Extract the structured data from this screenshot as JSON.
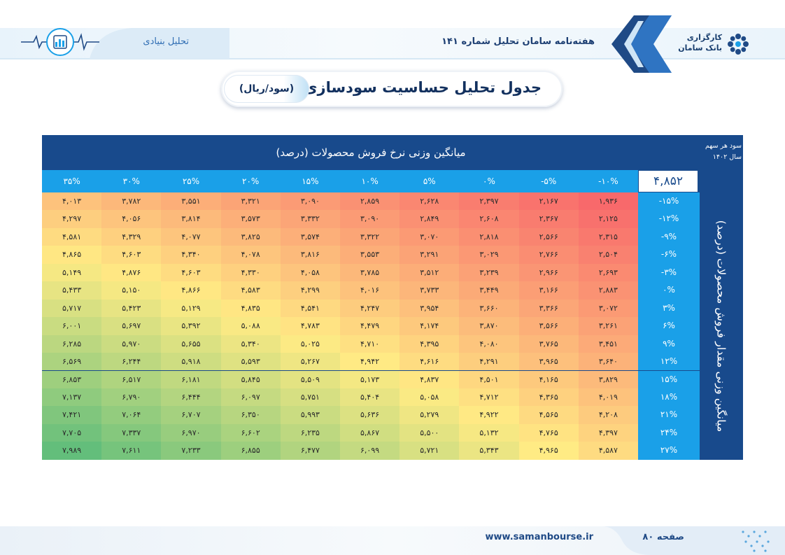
{
  "header": {
    "brand_line1": "کارگزاری",
    "brand_line2": "بانک سامان",
    "publication_title": "هفته‌نامه سامان تحلیل شماره ۱۴۱",
    "section": "تحلیل بنیادی"
  },
  "title": {
    "main": "جدول تحلیل حساسیت سودسازی",
    "unit": "(سود/ریال)"
  },
  "table": {
    "column_axis_title": "میانگین وزنی نرخ فروش محصولات (درصد)",
    "row_axis_title": "میانگین وزنی مقدار فروش محصولات (درصد)",
    "eps_label_line1": "سود هر سهم",
    "eps_label_line2": "سال ۱۴۰۲",
    "eps_value": "۴,۸۵۲",
    "column_headers": [
      "-۱۰%",
      "-۵%",
      "۰%",
      "۵%",
      "۱۰%",
      "۱۵%",
      "۲۰%",
      "۲۵%",
      "۳۰%",
      "۳۵%"
    ],
    "row_headers": [
      "-۱۵%",
      "-۱۲%",
      "-۹%",
      "-۶%",
      "-۳%",
      "۰%",
      "۳%",
      "۶%",
      "۹%",
      "۱۲%",
      "۱۵%",
      "۱۸%",
      "۲۱%",
      "۲۴%",
      "۲۷%"
    ],
    "rows": [
      [
        "۱,۹۳۶",
        "۲,۱۶۷",
        "۲,۳۹۷",
        "۲,۶۲۸",
        "۲,۸۵۹",
        "۳,۰۹۰",
        "۳,۳۲۱",
        "۳,۵۵۱",
        "۳,۷۸۲",
        "۴,۰۱۳"
      ],
      [
        "۲,۱۲۵",
        "۲,۳۶۷",
        "۲,۶۰۸",
        "۲,۸۴۹",
        "۳,۰۹۰",
        "۳,۳۳۲",
        "۳,۵۷۳",
        "۳,۸۱۴",
        "۴,۰۵۶",
        "۴,۲۹۷"
      ],
      [
        "۲,۳۱۵",
        "۲,۵۶۶",
        "۲,۸۱۸",
        "۳,۰۷۰",
        "۳,۳۲۲",
        "۳,۵۷۴",
        "۳,۸۲۵",
        "۴,۰۷۷",
        "۴,۳۲۹",
        "۴,۵۸۱"
      ],
      [
        "۲,۵۰۴",
        "۲,۷۶۶",
        "۳,۰۲۹",
        "۳,۲۹۱",
        "۳,۵۵۳",
        "۳,۸۱۶",
        "۴,۰۷۸",
        "۴,۳۴۰",
        "۴,۶۰۳",
        "۴,۸۶۵"
      ],
      [
        "۲,۶۹۳",
        "۲,۹۶۶",
        "۳,۲۳۹",
        "۳,۵۱۲",
        "۳,۷۸۵",
        "۴,۰۵۸",
        "۴,۳۳۰",
        "۴,۶۰۳",
        "۴,۸۷۶",
        "۵,۱۴۹"
      ],
      [
        "۲,۸۸۳",
        "۳,۱۶۶",
        "۳,۴۴۹",
        "۳,۷۳۳",
        "۴,۰۱۶",
        "۴,۲۹۹",
        "۴,۵۸۳",
        "۴,۸۶۶",
        "۵,۱۵۰",
        "۵,۴۳۳"
      ],
      [
        "۳,۰۷۲",
        "۳,۳۶۶",
        "۳,۶۶۰",
        "۳,۹۵۴",
        "۴,۲۴۷",
        "۴,۵۴۱",
        "۴,۸۳۵",
        "۵,۱۲۹",
        "۵,۴۲۳",
        "۵,۷۱۷"
      ],
      [
        "۳,۲۶۱",
        "۳,۵۶۶",
        "۳,۸۷۰",
        "۴,۱۷۴",
        "۴,۴۷۹",
        "۴,۷۸۳",
        "۵,۰۸۸",
        "۵,۳۹۲",
        "۵,۶۹۷",
        "۶,۰۰۱"
      ],
      [
        "۳,۴۵۱",
        "۳,۷۶۵",
        "۴,۰۸۰",
        "۴,۳۹۵",
        "۴,۷۱۰",
        "۵,۰۲۵",
        "۵,۳۴۰",
        "۵,۶۵۵",
        "۵,۹۷۰",
        "۶,۲۸۵"
      ],
      [
        "۳,۶۴۰",
        "۳,۹۶۵",
        "۴,۲۹۱",
        "۴,۶۱۶",
        "۴,۹۴۲",
        "۵,۲۶۷",
        "۵,۵۹۳",
        "۵,۹۱۸",
        "۶,۲۴۴",
        "۶,۵۶۹"
      ],
      [
        "۳,۸۲۹",
        "۴,۱۶۵",
        "۴,۵۰۱",
        "۴,۸۳۷",
        "۵,۱۷۳",
        "۵,۵۰۹",
        "۵,۸۴۵",
        "۶,۱۸۱",
        "۶,۵۱۷",
        "۶,۸۵۳"
      ],
      [
        "۴,۰۱۹",
        "۴,۳۶۵",
        "۴,۷۱۲",
        "۵,۰۵۸",
        "۵,۴۰۴",
        "۵,۷۵۱",
        "۶,۰۹۷",
        "۶,۴۴۴",
        "۶,۷۹۰",
        "۷,۱۳۷"
      ],
      [
        "۴,۲۰۸",
        "۴,۵۶۵",
        "۴,۹۲۲",
        "۵,۲۷۹",
        "۵,۶۳۶",
        "۵,۹۹۳",
        "۶,۳۵۰",
        "۶,۷۰۷",
        "۷,۰۶۴",
        "۷,۴۲۱"
      ],
      [
        "۴,۳۹۷",
        "۴,۷۶۵",
        "۵,۱۳۲",
        "۵,۵۰۰",
        "۵,۸۶۷",
        "۶,۲۳۵",
        "۶,۶۰۲",
        "۶,۹۷۰",
        "۷,۳۳۷",
        "۷,۷۰۵"
      ],
      [
        "۴,۵۸۷",
        "۴,۹۶۵",
        "۵,۳۴۳",
        "۵,۷۲۱",
        "۶,۰۹۹",
        "۶,۴۷۷",
        "۶,۸۵۵",
        "۷,۲۳۳",
        "۷,۶۱۱",
        "۷,۹۸۹"
      ]
    ],
    "color_scale": {
      "low": "#f8696b",
      "mid": "#ffeb84",
      "high": "#63be7b"
    }
  },
  "footer": {
    "url": "www.samanbourse.ir",
    "page_label": "صفحه ۸۰"
  },
  "colors": {
    "navy": "#184a8c",
    "light_blue": "#1aa0e8"
  }
}
